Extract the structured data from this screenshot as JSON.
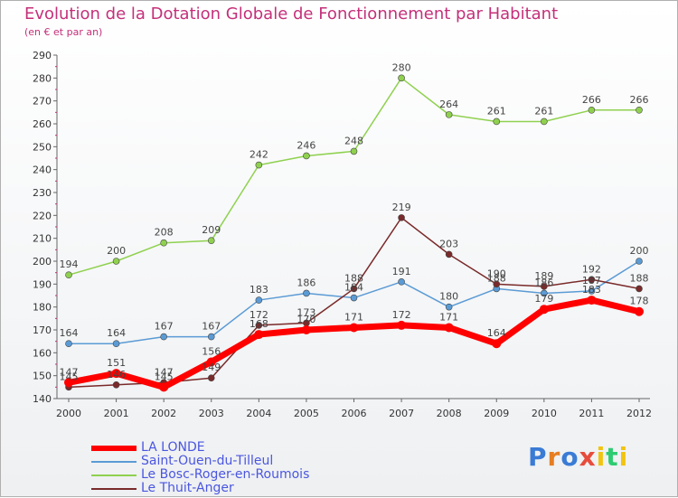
{
  "chart_data": {
    "type": "line",
    "title": "Evolution de la Dotation Globale de Fonctionnement par Habitant",
    "subtitle": "(en € et par an)",
    "xlabel": "",
    "ylabel": "",
    "categories": [
      "2000",
      "2001",
      "2002",
      "2003",
      "2004",
      "2005",
      "2006",
      "2007",
      "2008",
      "2009",
      "2010",
      "2011",
      "2012"
    ],
    "ylim": [
      140,
      290
    ],
    "yticks": [
      140,
      150,
      160,
      170,
      180,
      190,
      200,
      210,
      220,
      230,
      240,
      250,
      260,
      270,
      280,
      290
    ],
    "grid": false,
    "legend_position": "bottom-left",
    "series": [
      {
        "name": "LA LONDE",
        "color": "#ff0000",
        "values": [
          147,
          151,
          145,
          156,
          168,
          170,
          171,
          172,
          171,
          164,
          179,
          183,
          178
        ]
      },
      {
        "name": "Saint-Ouen-du-Tilleul",
        "color": "#5b9bd5",
        "values": [
          164,
          164,
          167,
          167,
          183,
          186,
          184,
          191,
          180,
          188,
          186,
          187,
          200
        ]
      },
      {
        "name": "Le Bosc-Roger-en-Roumois",
        "color": "#8fd14f",
        "values": [
          194,
          200,
          208,
          209,
          242,
          246,
          248,
          280,
          264,
          261,
          261,
          266,
          266
        ]
      },
      {
        "name": "Le Thuit-Anger",
        "color": "#7a2a2a",
        "values": [
          145,
          146,
          147,
          149,
          172,
          173,
          188,
          219,
          203,
          190,
          189,
          192,
          188
        ]
      }
    ]
  },
  "branding": {
    "logo_letters": [
      "P",
      "r",
      "o",
      "x",
      "i",
      "t",
      "i"
    ],
    "logo_colors": [
      "#3a7bd5",
      "#e67e22",
      "#3a7bd5",
      "#e74c3c",
      "#f1c40f",
      "#2ecc71",
      "#f1c40f"
    ]
  }
}
